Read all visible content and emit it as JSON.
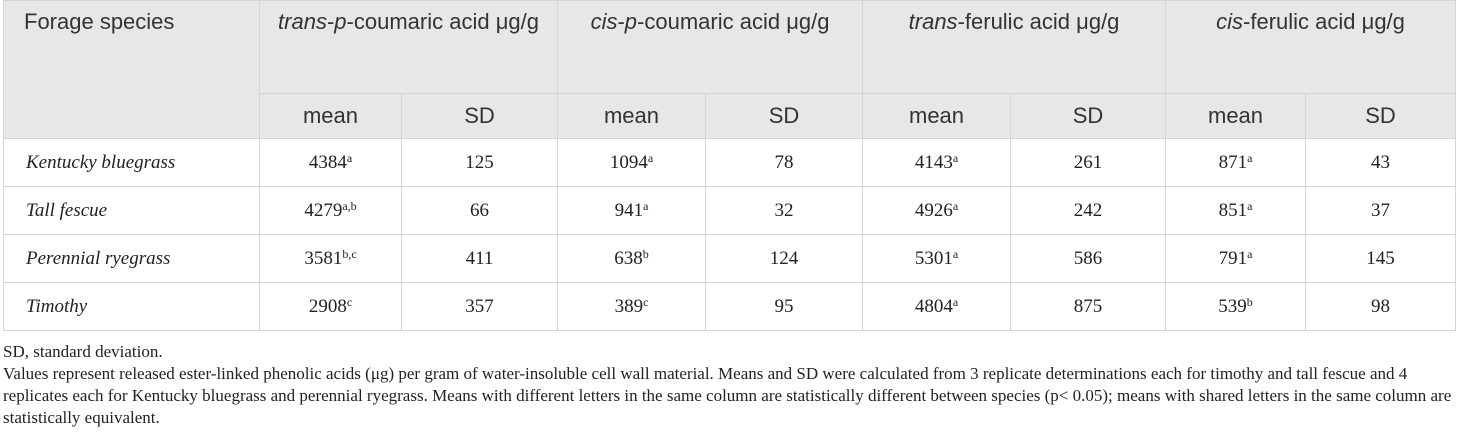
{
  "table": {
    "header_groups_label": "Forage species",
    "groups": [
      {
        "segments": [
          {
            "text": "trans",
            "italic": true
          },
          {
            "text": "-",
            "italic": false
          },
          {
            "text": "p",
            "italic": true
          },
          {
            "text": "-coumaric acid μg/g",
            "italic": false
          }
        ]
      },
      {
        "segments": [
          {
            "text": "cis",
            "italic": true
          },
          {
            "text": "-",
            "italic": false
          },
          {
            "text": "p",
            "italic": true
          },
          {
            "text": "-coumaric acid μg/g",
            "italic": false
          }
        ]
      },
      {
        "segments": [
          {
            "text": "trans",
            "italic": true
          },
          {
            "text": "-ferulic acid μg/g",
            "italic": false
          }
        ]
      },
      {
        "segments": [
          {
            "text": "cis",
            "italic": true
          },
          {
            "text": "-ferulic acid μg/g",
            "italic": false
          }
        ]
      }
    ],
    "subheaders": [
      "mean",
      "SD"
    ],
    "rows": [
      {
        "species": "Kentucky bluegrass",
        "cells": [
          {
            "mean": 4384,
            "letters": "a",
            "sd": 125
          },
          {
            "mean": 1094,
            "letters": "a",
            "sd": 78
          },
          {
            "mean": 4143,
            "letters": "a",
            "sd": 261
          },
          {
            "mean": 871,
            "letters": "a",
            "sd": 43
          }
        ]
      },
      {
        "species": "Tall fescue",
        "cells": [
          {
            "mean": 4279,
            "letters": "a,b",
            "sd": 66
          },
          {
            "mean": 941,
            "letters": "a",
            "sd": 32
          },
          {
            "mean": 4926,
            "letters": "a",
            "sd": 242
          },
          {
            "mean": 851,
            "letters": "a",
            "sd": 37
          }
        ]
      },
      {
        "species": "Perennial ryegrass",
        "cells": [
          {
            "mean": 3581,
            "letters": "b,c",
            "sd": 411
          },
          {
            "mean": 638,
            "letters": "b",
            "sd": 124
          },
          {
            "mean": 5301,
            "letters": "a",
            "sd": 586
          },
          {
            "mean": 791,
            "letters": "a",
            "sd": 145
          }
        ]
      },
      {
        "species": "Timothy",
        "cells": [
          {
            "mean": 2908,
            "letters": "c",
            "sd": 357
          },
          {
            "mean": 389,
            "letters": "c",
            "sd": 95
          },
          {
            "mean": 4804,
            "letters": "a",
            "sd": 875
          },
          {
            "mean": 539,
            "letters": "b",
            "sd": 98
          }
        ]
      }
    ]
  },
  "footnotes": [
    "SD, standard deviation.",
    "Values represent released ester-linked phenolic acids (μg) per gram of water-insoluble cell wall material. Means and SD were calculated from 3 replicate determinations each for timothy and tall fescue and 4 replicates each for Kentucky bluegrass and perennial ryegrass. Means with different letters in the same column are statistically different between species (p< 0.05); means with shared letters in the same column are statistically equivalent."
  ]
}
